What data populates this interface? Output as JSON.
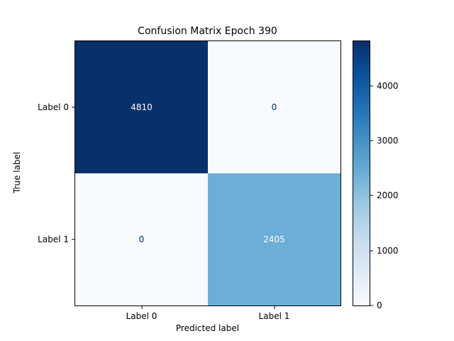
{
  "chart_data": {
    "type": "heatmap",
    "title": "Confusion Matrix Epoch 390",
    "xlabel": "Predicted label",
    "ylabel": "True label",
    "x_tick_labels": [
      "Label 0",
      "Label 1"
    ],
    "y_tick_labels": [
      "Label 0",
      "Label 1"
    ],
    "matrix": [
      [
        4810,
        0
      ],
      [
        0,
        2405
      ]
    ],
    "vmin": 0,
    "vmax": 4810,
    "colormap": "Blues",
    "colorbar_ticks": [
      0,
      1000,
      2000,
      3000,
      4000
    ],
    "cell_colors": [
      [
        "#08306b",
        "#f7fbff"
      ],
      [
        "#f7fbff",
        "#6baed6"
      ]
    ],
    "cell_text_colors": [
      [
        "#ffffff",
        "#08306b"
      ],
      [
        "#08306b",
        "#ffffff"
      ]
    ],
    "colorbar_gradient": [
      "#f7fbff",
      "#deebf7",
      "#c6dbef",
      "#9ecae1",
      "#6baed6",
      "#4292c6",
      "#2171b5",
      "#08519c",
      "#08306b"
    ],
    "axes_color": "#000000",
    "background_color": "#ffffff"
  }
}
